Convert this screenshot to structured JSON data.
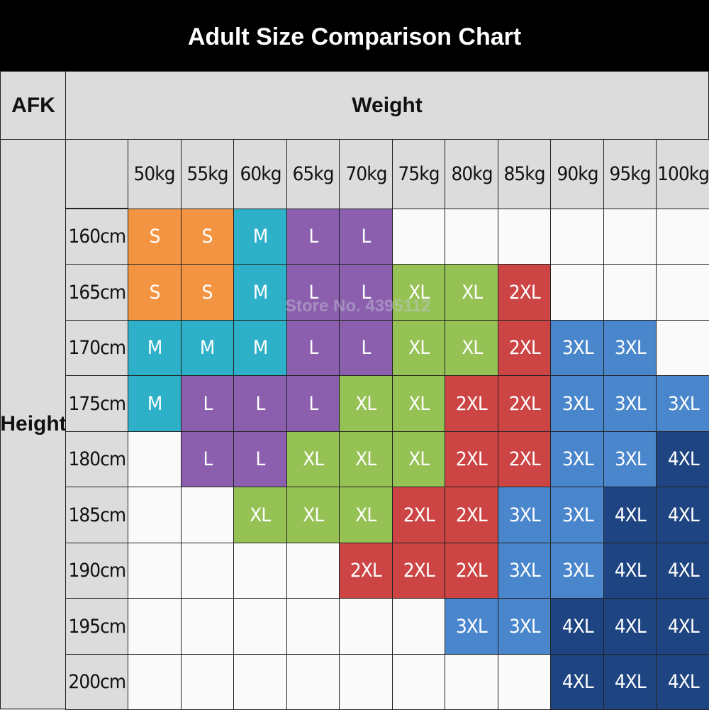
{
  "title": "Adult Size Comparison Chart",
  "corner_label": "AFK",
  "column_group_label": "Weight",
  "row_group_label": "Height",
  "watermark": "Store No. 4395112",
  "size_colors": {
    "S": "#f39443",
    "M": "#2fb0c9",
    "L": "#8b5fae",
    "XL": "#95c155",
    "2XL": "#cc4444",
    "3XL": "#4a86cc",
    "4XL": "#1e4482"
  },
  "chart_data": {
    "type": "table",
    "title": "Adult Size Comparison Chart",
    "columns": [
      "50kg",
      "55kg",
      "60kg",
      "65kg",
      "70kg",
      "75kg",
      "80kg",
      "85kg",
      "90kg",
      "95kg",
      "100kg"
    ],
    "rows": [
      {
        "height": "160cm",
        "sizes": [
          "S",
          "S",
          "M",
          "L",
          "L",
          "",
          "",
          "",
          "",
          "",
          ""
        ]
      },
      {
        "height": "165cm",
        "sizes": [
          "S",
          "S",
          "M",
          "L",
          "L",
          "XL",
          "XL",
          "2XL",
          "",
          "",
          ""
        ]
      },
      {
        "height": "170cm",
        "sizes": [
          "M",
          "M",
          "M",
          "L",
          "L",
          "XL",
          "XL",
          "2XL",
          "3XL",
          "3XL",
          ""
        ]
      },
      {
        "height": "175cm",
        "sizes": [
          "M",
          "L",
          "L",
          "L",
          "XL",
          "XL",
          "2XL",
          "2XL",
          "3XL",
          "3XL",
          "3XL"
        ]
      },
      {
        "height": "180cm",
        "sizes": [
          "",
          "L",
          "L",
          "XL",
          "XL",
          "XL",
          "2XL",
          "2XL",
          "3XL",
          "3XL",
          "4XL"
        ]
      },
      {
        "height": "185cm",
        "sizes": [
          "",
          "",
          "XL",
          "XL",
          "XL",
          "2XL",
          "2XL",
          "3XL",
          "3XL",
          "4XL",
          "4XL"
        ]
      },
      {
        "height": "190cm",
        "sizes": [
          "",
          "",
          "",
          "",
          "2XL",
          "2XL",
          "2XL",
          "3XL",
          "3XL",
          "4XL",
          "4XL"
        ]
      },
      {
        "height": "195cm",
        "sizes": [
          "",
          "",
          "",
          "",
          "",
          "",
          "3XL",
          "3XL",
          "4XL",
          "4XL",
          "4XL"
        ]
      },
      {
        "height": "200cm",
        "sizes": [
          "",
          "",
          "",
          "",
          "",
          "",
          "",
          "",
          "4XL",
          "4XL",
          "4XL"
        ]
      }
    ]
  }
}
